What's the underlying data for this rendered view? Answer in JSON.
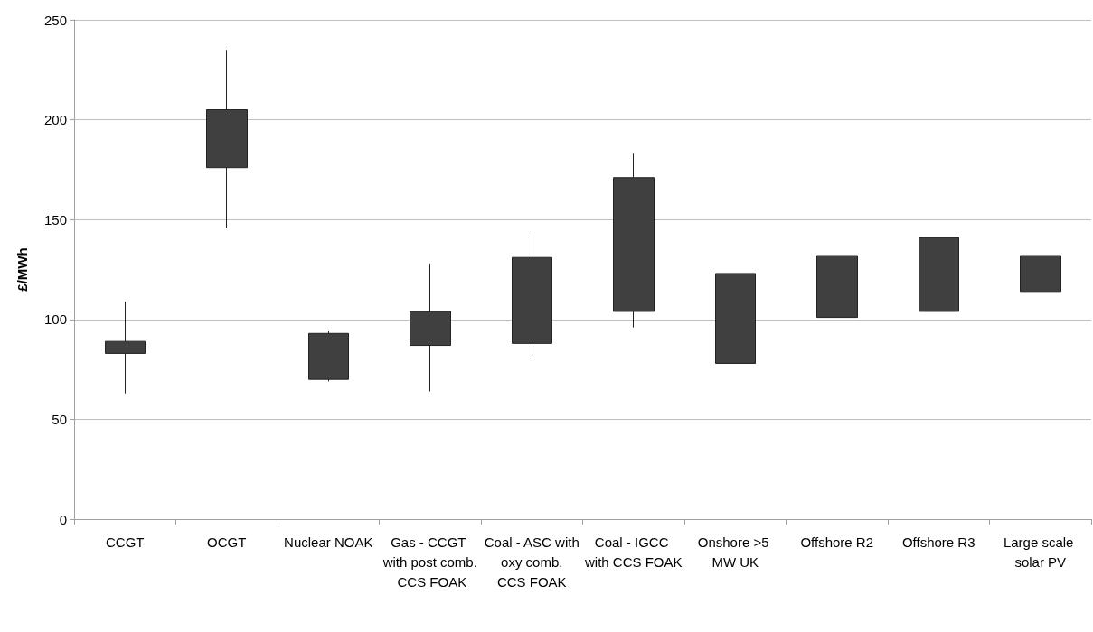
{
  "chart_data": {
    "type": "candlestick",
    "ylabel": "£/MWh",
    "categories": [
      "CCGT",
      "OCGT",
      "Nuclear NOAK",
      "Gas - CCGT with post comb. CCS FOAK",
      "Coal - ASC with oxy comb. CCS FOAK",
      "Coal - IGCC with CCS FOAK",
      "Onshore >5 MW UK",
      "Offshore R2",
      "Offshore R3",
      "Large scale solar PV"
    ],
    "ohlc": [
      [
        83,
        109,
        63,
        89
      ],
      [
        176,
        235,
        146,
        205
      ],
      [
        70,
        94,
        69,
        93
      ],
      [
        87,
        128,
        64,
        104
      ],
      [
        88,
        143,
        80,
        131
      ],
      [
        104,
        183,
        96,
        171
      ],
      [
        78,
        123,
        78,
        123
      ],
      [
        101,
        132,
        101,
        132
      ],
      [
        104,
        141,
        104,
        141
      ],
      [
        114,
        132,
        114,
        132
      ]
    ],
    "color": "#404040",
    "ylim": [
      0,
      250
    ],
    "yticks": [
      0,
      50,
      100,
      150,
      200,
      250
    ],
    "grid": "y"
  }
}
